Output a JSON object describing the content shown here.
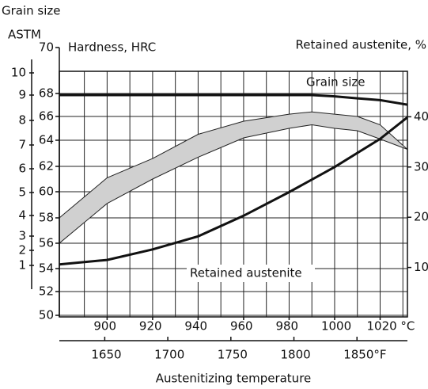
{
  "chart_data": {
    "type": "line",
    "x_title": "Austenitizing temperature",
    "grain_title": [
      "Grain size",
      "ASTM"
    ],
    "y_title": "Hardness, HRC",
    "y2_title": "Retained austenite, %",
    "xlim": [
      879,
      1032
    ],
    "xticks": [
      900,
      920,
      940,
      960,
      980,
      1000,
      {
        "value": 1020,
        "label": "1020 °C"
      }
    ],
    "xgrid": [
      890,
      900,
      910,
      920,
      930,
      940,
      950,
      960,
      970,
      980,
      990,
      1000,
      1010,
      1020,
      1030
    ],
    "x2lim": [
      1614,
      1890
    ],
    "x2ticks": [
      1650,
      1700,
      1750,
      1800,
      {
        "value": 1850,
        "label": "1850°F"
      }
    ],
    "yticks": [
      70,
      68,
      66,
      64,
      62,
      60,
      58,
      56,
      54,
      52,
      50
    ],
    "grain_ticks": [
      10,
      9,
      8,
      7,
      6,
      5,
      4,
      3,
      2,
      1
    ],
    "y2lim": [
      0,
      50
    ],
    "y2ticks": [
      40,
      30,
      20,
      10
    ],
    "grid": true,
    "x": [
      879,
      900,
      920,
      940,
      960,
      980,
      990,
      1000,
      1010,
      1020,
      1032
    ],
    "band": {
      "color": "#d0d0d0",
      "upper": [
        58,
        61.1,
        62.6,
        64.5,
        65.6,
        66.2,
        66.4,
        66.2,
        66,
        65.3,
        63.3
      ],
      "lower": [
        56,
        59.1,
        61,
        62.7,
        64.2,
        65,
        65.3,
        65,
        64.8,
        64.1,
        63.3
      ]
    },
    "series": [
      {
        "name": "Grain size",
        "color": "#111111",
        "axis": "grain",
        "x": [
          879,
          990,
          1000,
          1010,
          1020,
          1032
        ],
        "values": [
          9,
          9,
          8.95,
          8.87,
          8.8,
          8.62
        ]
      },
      {
        "name": "Retained austenite",
        "color": "#111111",
        "axis": "y2",
        "x": [
          879,
          900,
          920,
          940,
          960,
          980,
          1000,
          1020,
          1032
        ],
        "values": [
          10.6,
          11.5,
          13.6,
          16.2,
          20.3,
          25,
          30,
          35.6,
          39.9
        ]
      }
    ]
  }
}
